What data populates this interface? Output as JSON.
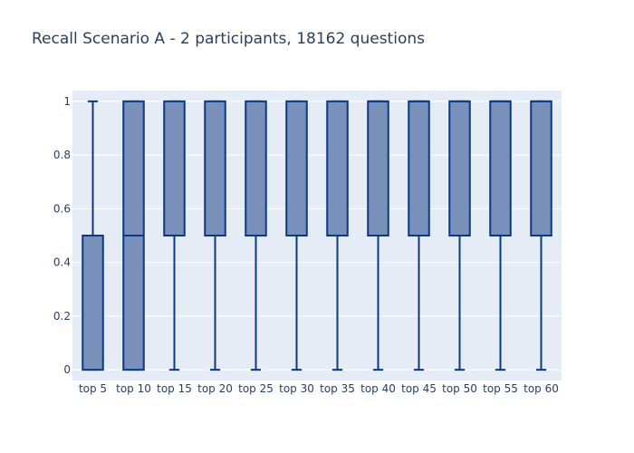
{
  "chart_data": {
    "type": "box",
    "title": "Recall Scenario A - 2 participants, 18162 questions",
    "xlabel": "",
    "ylabel": "",
    "ylim": [
      -0.04,
      1.04
    ],
    "yticks": [
      0,
      0.2,
      0.4,
      0.6,
      0.8,
      1
    ],
    "ytick_labels": [
      "0",
      "0.2",
      "0.4",
      "0.6",
      "0.8",
      "1"
    ],
    "grid": true,
    "legend": "none",
    "colors": {
      "box_fill": "#7890ba",
      "box_line": "#0b3a82",
      "plot_bg": "#e5ecf6",
      "gridline": "#ffffff",
      "text": "#2a3f5f"
    },
    "categories": [
      "top 5",
      "top 10",
      "top 15",
      "top 20",
      "top 25",
      "top 30",
      "top 35",
      "top 40",
      "top 45",
      "top 50",
      "top 55",
      "top 60"
    ],
    "boxes": [
      {
        "min": 0,
        "q1": 0,
        "median": 0.5,
        "q3": 0.5,
        "max": 1
      },
      {
        "min": 0,
        "q1": 0,
        "median": 0.5,
        "q3": 1,
        "max": 1
      },
      {
        "min": 0,
        "q1": 0.5,
        "median": 0.5,
        "q3": 1,
        "max": 1
      },
      {
        "min": 0,
        "q1": 0.5,
        "median": 0.5,
        "q3": 1,
        "max": 1
      },
      {
        "min": 0,
        "q1": 0.5,
        "median": 0.5,
        "q3": 1,
        "max": 1
      },
      {
        "min": 0,
        "q1": 0.5,
        "median": 0.5,
        "q3": 1,
        "max": 1
      },
      {
        "min": 0,
        "q1": 0.5,
        "median": 0.5,
        "q3": 1,
        "max": 1
      },
      {
        "min": 0,
        "q1": 0.5,
        "median": 1,
        "q3": 1,
        "max": 1
      },
      {
        "min": 0,
        "q1": 0.5,
        "median": 1,
        "q3": 1,
        "max": 1
      },
      {
        "min": 0,
        "q1": 0.5,
        "median": 1,
        "q3": 1,
        "max": 1
      },
      {
        "min": 0,
        "q1": 0.5,
        "median": 1,
        "q3": 1,
        "max": 1
      },
      {
        "min": 0,
        "q1": 0.5,
        "median": 1,
        "q3": 1,
        "max": 1
      }
    ]
  }
}
